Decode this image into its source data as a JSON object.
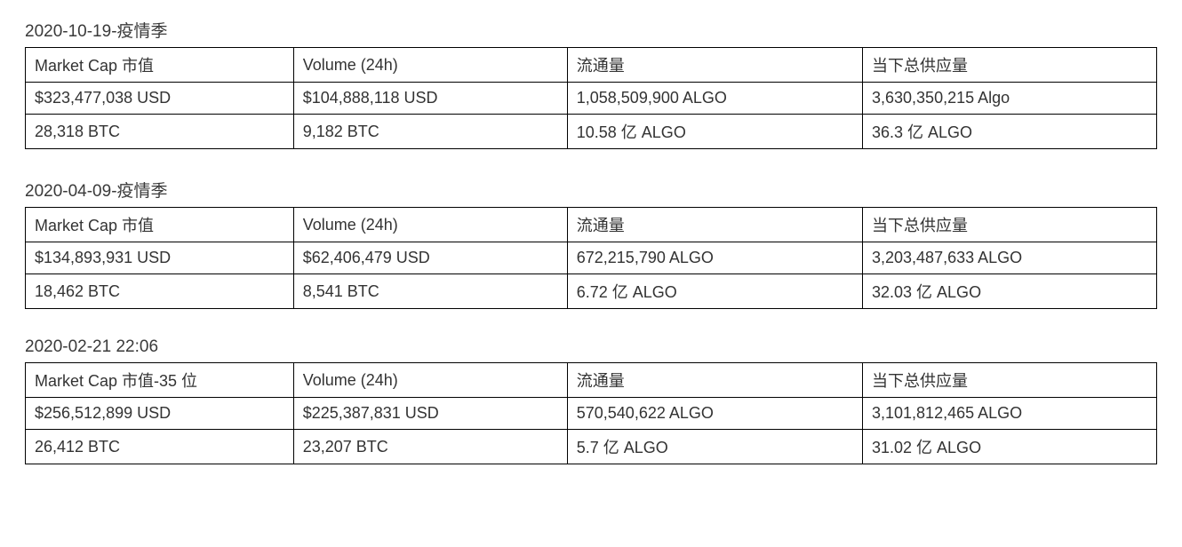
{
  "sections": [
    {
      "title": "2020-10-19-疫情季",
      "columns": [
        "Market Cap 市值",
        "Volume (24h)",
        "流通量",
        "当下总供应量"
      ],
      "rows": [
        [
          "$323,477,038 USD",
          "$104,888,118 USD",
          "1,058,509,900 ALGO",
          "3,630,350,215 Algo"
        ],
        [
          "28,318 BTC",
          "9,182 BTC",
          "10.58 亿 ALGO",
          "36.3 亿  ALGO"
        ]
      ]
    },
    {
      "title": "2020-04-09-疫情季",
      "columns": [
        "Market Cap 市值",
        "Volume (24h)",
        "流通量",
        "当下总供应量"
      ],
      "rows": [
        [
          "$134,893,931 USD",
          "$62,406,479 USD",
          "672,215,790 ALGO",
          "3,203,487,633 ALGO"
        ],
        [
          "18,462 BTC",
          "8,541 BTC",
          "6.72 亿 ALGO",
          "32.03 亿  ALGO"
        ]
      ]
    },
    {
      "title": "2020-02-21 22:06",
      "columns": [
        "Market Cap 市值-35 位",
        "Volume (24h)",
        "流通量",
        "当下总供应量"
      ],
      "rows": [
        [
          "$256,512,899 USD",
          "$225,387,831 USD",
          "570,540,622 ALGO",
          "3,101,812,465 ALGO"
        ],
        [
          "26,412 BTC",
          "23,207 BTC",
          "5.7 亿 ALGO",
          "31.02 亿  ALGO"
        ]
      ]
    }
  ]
}
